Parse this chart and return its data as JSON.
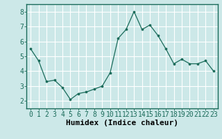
{
  "x": [
    0,
    1,
    2,
    3,
    4,
    5,
    6,
    7,
    8,
    9,
    10,
    11,
    12,
    13,
    14,
    15,
    16,
    17,
    18,
    19,
    20,
    21,
    22,
    23
  ],
  "y": [
    5.5,
    4.7,
    3.3,
    3.4,
    2.9,
    2.1,
    2.5,
    2.6,
    2.8,
    3.0,
    3.9,
    6.2,
    6.8,
    8.0,
    6.8,
    7.1,
    6.4,
    5.5,
    4.5,
    4.8,
    4.5,
    4.5,
    4.7,
    4.0
  ],
  "xlabel": "Humidex (Indice chaleur)",
  "xlim": [
    -0.5,
    23.5
  ],
  "ylim": [
    1.5,
    8.5
  ],
  "yticks": [
    2,
    3,
    4,
    5,
    6,
    7,
    8
  ],
  "xticks": [
    0,
    1,
    2,
    3,
    4,
    5,
    6,
    7,
    8,
    9,
    10,
    11,
    12,
    13,
    14,
    15,
    16,
    17,
    18,
    19,
    20,
    21,
    22,
    23
  ],
  "xtick_labels": [
    "0",
    "1",
    "2",
    "3",
    "4",
    "5",
    "6",
    "7",
    "8",
    "9",
    "10",
    "11",
    "12",
    "13",
    "14",
    "15",
    "16",
    "17",
    "18",
    "19",
    "20",
    "21",
    "22",
    "23"
  ],
  "line_color": "#1a6b5a",
  "marker_color": "#1a6b5a",
  "bg_color": "#cce8e8",
  "grid_color": "#ffffff",
  "xlabel_fontsize": 8,
  "tick_fontsize": 7
}
